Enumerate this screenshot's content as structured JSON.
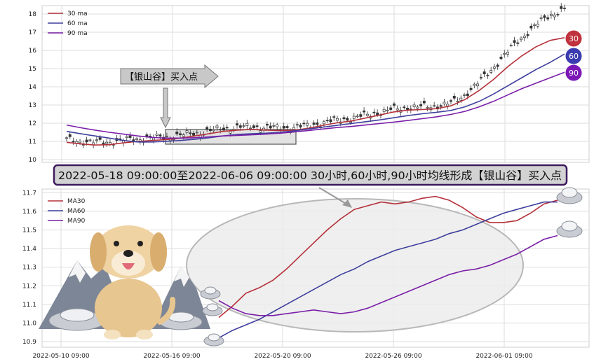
{
  "chart_data": [
    {
      "type": "line",
      "yticks": [
        "18",
        "17",
        "16",
        "15",
        "14",
        "13",
        "12",
        "11",
        "10"
      ],
      "ylim": [
        10,
        18
      ],
      "grid": true,
      "legend": "top-left",
      "series": [
        {
          "name": "30 ma",
          "color": "#b5313a",
          "values": [
            10.95,
            10.86,
            10.8,
            10.82,
            10.92,
            11.0,
            11.05,
            11.1,
            11.18,
            11.3,
            11.42,
            11.55,
            11.62,
            11.66,
            11.62,
            11.6,
            11.62,
            11.72,
            11.88,
            12.02,
            12.12,
            12.28,
            12.45,
            12.62,
            12.72,
            12.75,
            12.8,
            12.95,
            13.3,
            13.8,
            14.4,
            15.1,
            15.7,
            16.2,
            16.55,
            16.7
          ]
        },
        {
          "name": "60 ma",
          "color": "#3f3f9e",
          "values": [
            11.55,
            11.42,
            11.3,
            11.18,
            11.05,
            10.97,
            10.97,
            11.0,
            11.05,
            11.12,
            11.2,
            11.3,
            11.38,
            11.42,
            11.45,
            11.5,
            11.58,
            11.68,
            11.78,
            11.88,
            11.98,
            12.08,
            12.18,
            12.3,
            12.42,
            12.52,
            12.6,
            12.7,
            12.9,
            13.2,
            13.6,
            14.05,
            14.5,
            14.95,
            15.35,
            15.8
          ]
        },
        {
          "name": "90 ma",
          "color": "#7a1fa8",
          "values": [
            11.9,
            11.75,
            11.62,
            11.5,
            11.4,
            11.3,
            11.22,
            11.18,
            11.18,
            11.2,
            11.25,
            11.3,
            11.33,
            11.36,
            11.4,
            11.45,
            11.52,
            11.6,
            11.68,
            11.76,
            11.82,
            11.9,
            11.98,
            12.06,
            12.15,
            12.25,
            12.35,
            12.48,
            12.65,
            12.9,
            13.2,
            13.55,
            13.9,
            14.2,
            14.5,
            14.8
          ]
        }
      ],
      "annotations": {
        "callout": "【银山谷】买入点",
        "badges": [
          "30",
          "60",
          "90"
        ]
      }
    },
    {
      "type": "line",
      "yticks": [
        "11.7",
        "11.6",
        "11.5",
        "11.4",
        "11.3",
        "11.2",
        "11.1",
        "11.0",
        "10.9"
      ],
      "ylim": [
        10.87,
        11.72
      ],
      "xticks": [
        "2022-05-10 09:00",
        "2022-05-16 09:00",
        "2022-05-20 09:00",
        "2022-05-26 09:00",
        "2022-06-01 09:00"
      ],
      "grid": true,
      "legend": "top-left",
      "series": [
        {
          "name": "MA30",
          "color": "#b5313a",
          "values": [
            11.03,
            11.09,
            11.16,
            11.19,
            11.23,
            11.29,
            11.36,
            11.43,
            11.5,
            11.56,
            11.61,
            11.63,
            11.65,
            11.64,
            11.65,
            11.67,
            11.68,
            11.66,
            11.62,
            11.57,
            11.54,
            11.54,
            11.55,
            11.59,
            11.64,
            11.66
          ]
        },
        {
          "name": "MA60",
          "color": "#3f3f9e",
          "values": [
            10.92,
            10.96,
            10.99,
            11.02,
            11.06,
            11.1,
            11.14,
            11.18,
            11.22,
            11.26,
            11.29,
            11.33,
            11.36,
            11.39,
            11.41,
            11.43,
            11.45,
            11.48,
            11.5,
            11.53,
            11.56,
            11.59,
            11.61,
            11.63,
            11.65,
            11.65
          ]
        },
        {
          "name": "MA90",
          "color": "#7a1fa8",
          "values": [
            11.12,
            11.08,
            11.05,
            11.04,
            11.04,
            11.05,
            11.06,
            11.07,
            11.06,
            11.05,
            11.06,
            11.08,
            11.11,
            11.14,
            11.17,
            11.2,
            11.23,
            11.26,
            11.28,
            11.29,
            11.31,
            11.34,
            11.37,
            11.41,
            11.45,
            11.47
          ]
        }
      ]
    }
  ],
  "banner": {
    "text": "2022-05-18 09:00:00至2022-06-06 09:00:00 30小时,60小时,90小时均线形成【银山谷】买入点"
  }
}
